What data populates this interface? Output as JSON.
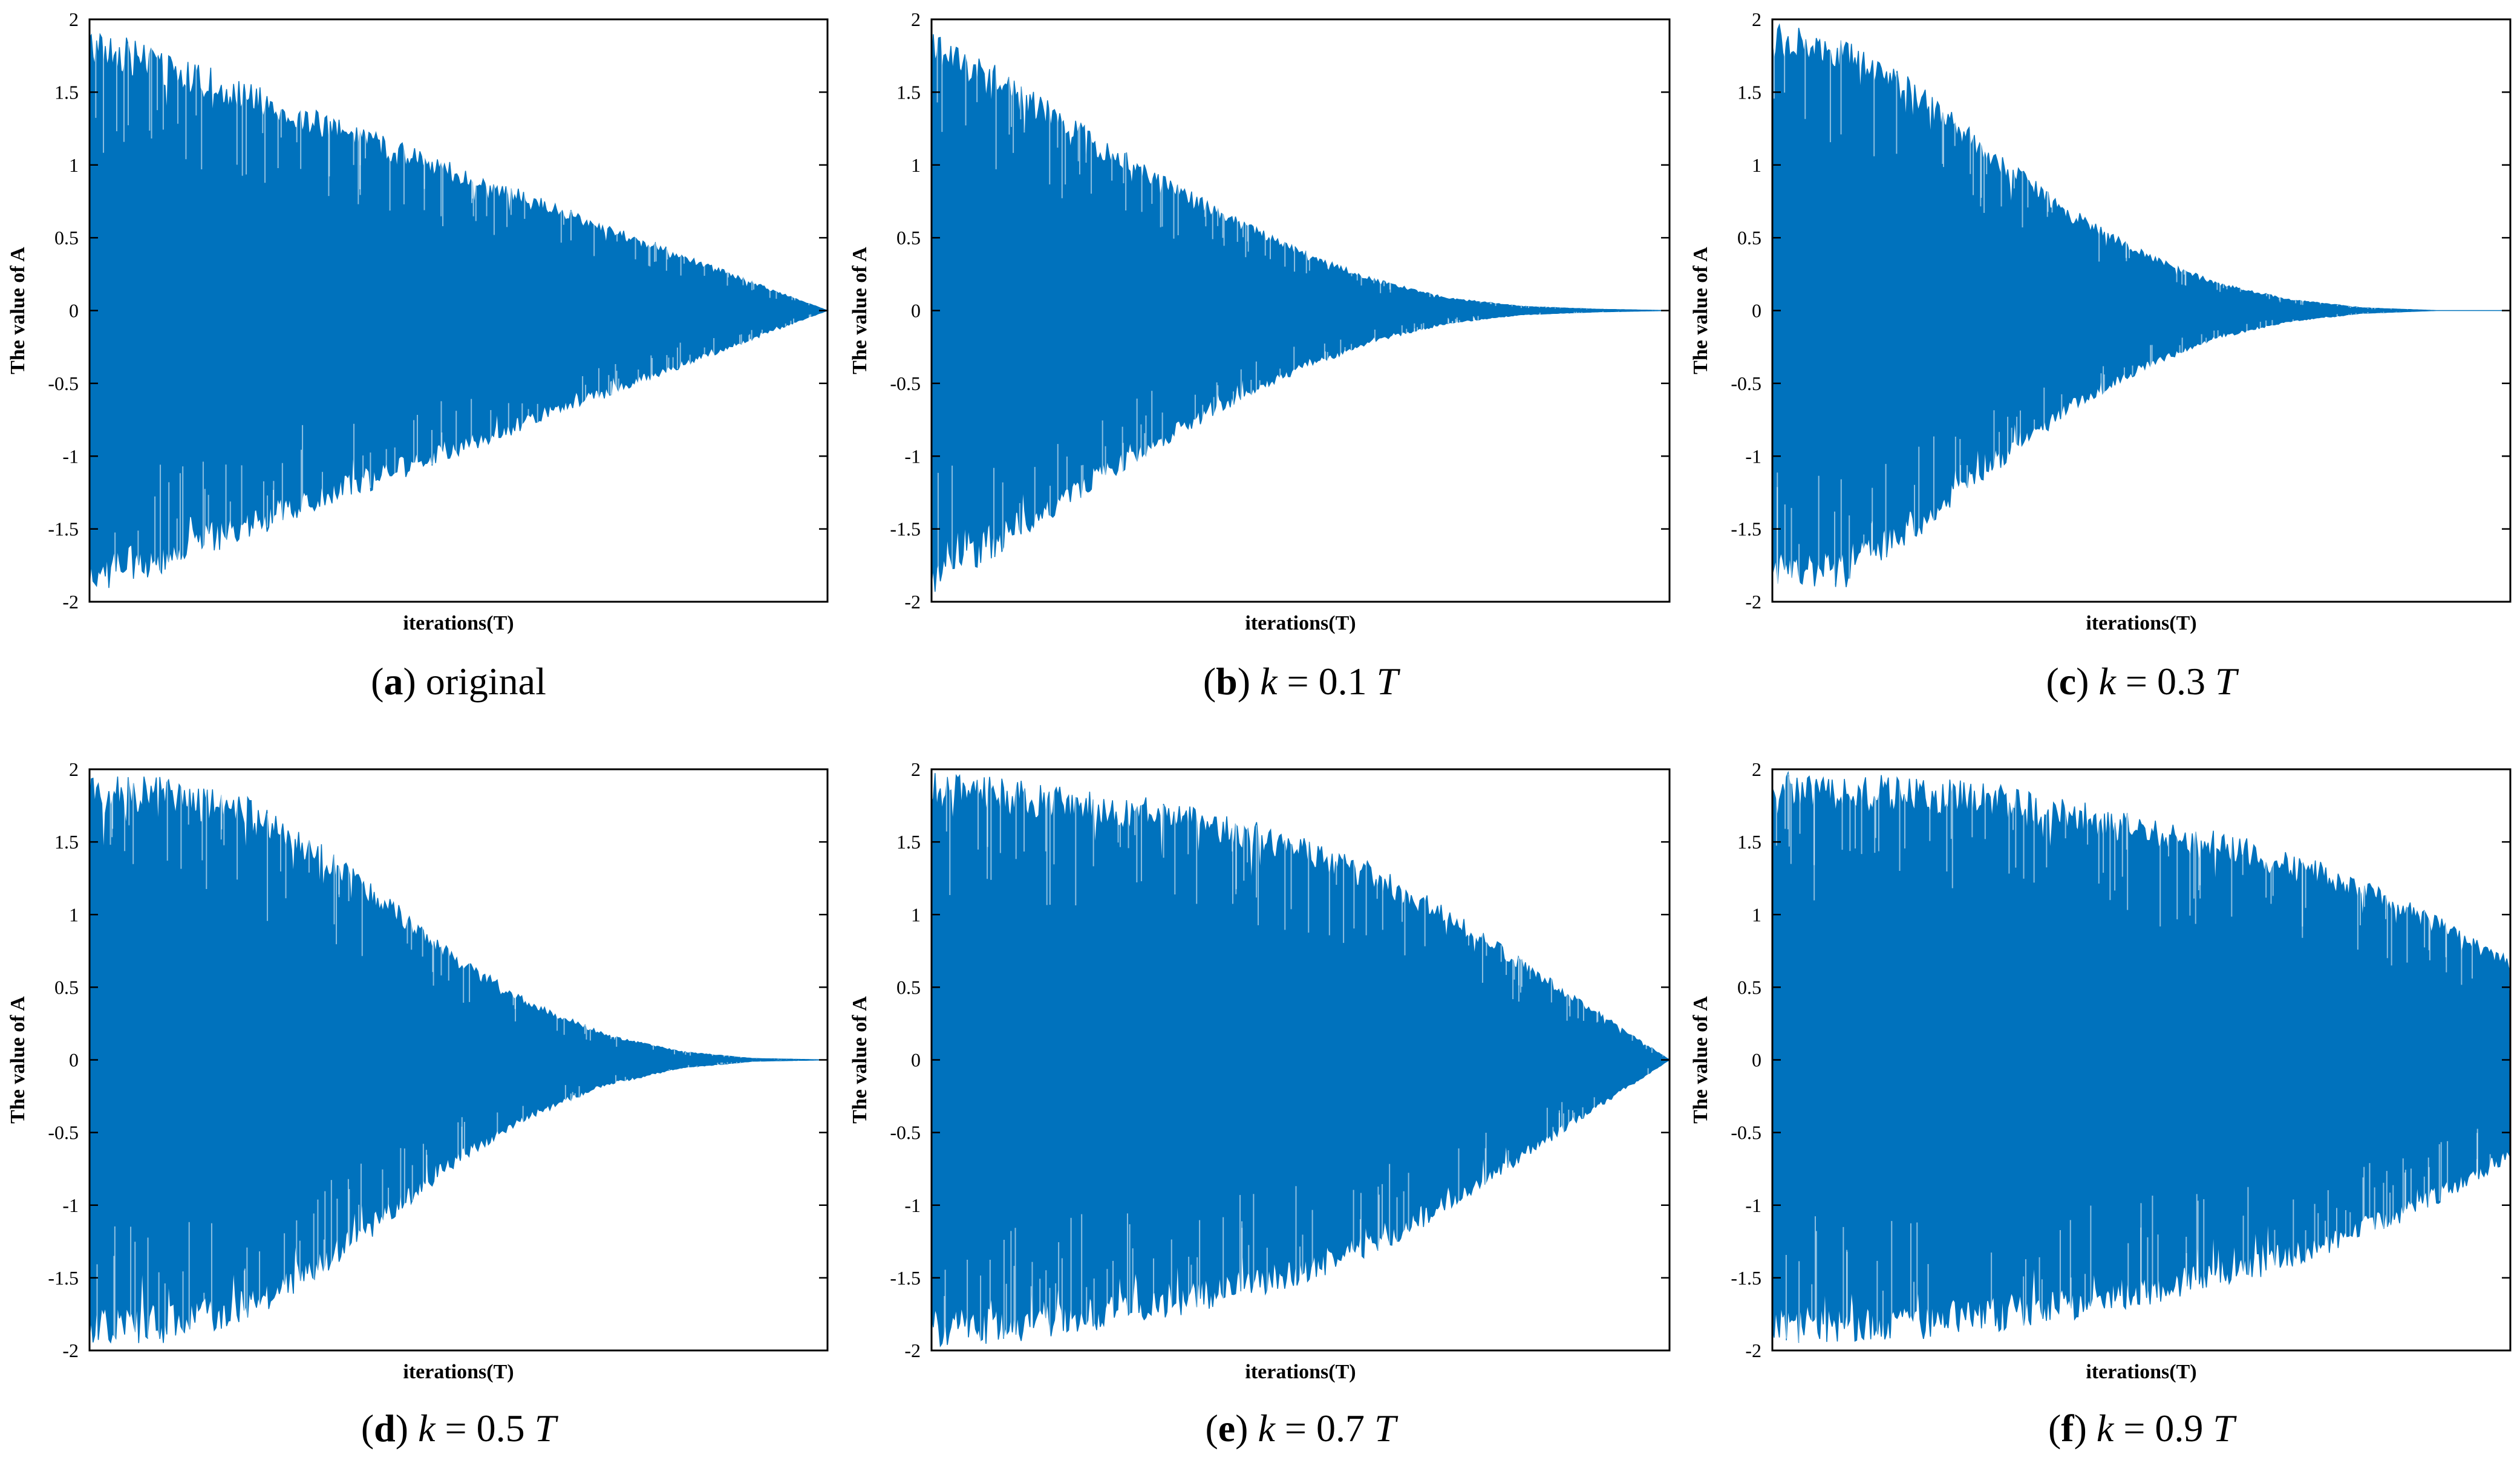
{
  "figure": {
    "background": "#ffffff",
    "series_color": "#0072bd",
    "axis_color": "#000000"
  },
  "chart_data": [
    {
      "id": "a",
      "type": "area",
      "title": "",
      "caption": {
        "letter": "a",
        "text": "original"
      },
      "xlabel": "iterations(T)",
      "ylabel": "The value of A",
      "ylim": [
        -2,
        2
      ],
      "yticks": [
        2,
        1.5,
        1,
        0.5,
        0,
        -0.5,
        -1,
        -1.5,
        -2
      ],
      "yticklabels": [
        "2",
        "1.5",
        "1",
        "0.5",
        "0",
        "-0.5",
        "-1",
        "-1.5",
        "-2"
      ],
      "x_normalized": [
        0,
        0.1,
        0.2,
        0.3,
        0.4,
        0.5,
        0.6,
        0.7,
        0.8,
        0.9,
        1.0
      ],
      "envelope_upper": [
        1.95,
        1.8,
        1.6,
        1.4,
        1.2,
        1.0,
        0.8,
        0.6,
        0.4,
        0.2,
        0.0
      ],
      "envelope_lower": [
        -1.95,
        -1.8,
        -1.6,
        -1.4,
        -1.2,
        -1.0,
        -0.8,
        -0.6,
        -0.4,
        -0.2,
        0.0
      ]
    },
    {
      "id": "b",
      "type": "area",
      "title": "",
      "caption": {
        "letter": "b",
        "text_pre": "k",
        "text_post": " = 0.1 ",
        "text_var": "T"
      },
      "xlabel": "iterations(T)",
      "ylabel": "The value of A",
      "ylim": [
        -2,
        2
      ],
      "yticks": [
        2,
        1.5,
        1,
        0.5,
        0,
        -0.5,
        -1,
        -1.5,
        -2
      ],
      "yticklabels": [
        "2",
        "1.5",
        "1",
        "0.5",
        "0",
        "-0.5",
        "-1",
        "-1.5",
        "-2"
      ],
      "x_normalized": [
        0,
        0.1,
        0.2,
        0.3,
        0.4,
        0.5,
        0.6,
        0.7,
        0.8,
        0.9,
        1.0
      ],
      "envelope_upper": [
        1.92,
        1.65,
        1.3,
        0.98,
        0.68,
        0.42,
        0.22,
        0.09,
        0.03,
        0.01,
        0.0
      ],
      "envelope_lower": [
        -1.95,
        -1.65,
        -1.3,
        -0.98,
        -0.68,
        -0.42,
        -0.22,
        -0.09,
        -0.03,
        -0.01,
        0.0
      ]
    },
    {
      "id": "c",
      "type": "area",
      "title": "",
      "caption": {
        "letter": "c",
        "text_pre": "k",
        "text_post": " = 0.3 ",
        "text_var": "T"
      },
      "xlabel": "iterations(T)",
      "ylabel": "The value of A",
      "ylim": [
        -2,
        2
      ],
      "yticks": [
        2,
        1.5,
        1,
        0.5,
        0,
        -0.5,
        -1,
        -1.5,
        -2
      ],
      "yticklabels": [
        "2",
        "1.5",
        "1",
        "0.5",
        "0",
        "-0.5",
        "-1",
        "-1.5",
        "-2"
      ],
      "x_normalized": [
        0,
        0.1,
        0.2,
        0.3,
        0.4,
        0.5,
        0.6,
        0.7,
        0.8,
        0.9,
        1.0
      ],
      "envelope_upper": [
        1.98,
        1.9,
        1.55,
        1.12,
        0.72,
        0.42,
        0.2,
        0.08,
        0.02,
        0.0,
        0.0
      ],
      "envelope_lower": [
        -1.9,
        -1.9,
        -1.55,
        -1.12,
        -0.72,
        -0.42,
        -0.2,
        -0.08,
        -0.02,
        0.0,
        0.0
      ]
    },
    {
      "id": "d",
      "type": "area",
      "title": "",
      "caption": {
        "letter": "d",
        "text_pre": "k",
        "text_post": " = 0.5 ",
        "text_var": "T"
      },
      "xlabel": "iterations(T)",
      "ylabel": "The value of A",
      "ylim": [
        -2,
        2
      ],
      "yticks": [
        2,
        1.5,
        1,
        0.5,
        0,
        -0.5,
        -1,
        -1.5,
        -2
      ],
      "yticklabels": [
        "2",
        "1.5",
        "1",
        "0.5",
        "0",
        "-0.5",
        "-1",
        "-1.5",
        "-2"
      ],
      "x_normalized": [
        0,
        0.1,
        0.2,
        0.3,
        0.4,
        0.5,
        0.6,
        0.7,
        0.8,
        0.9,
        1.0
      ],
      "envelope_upper": [
        1.98,
        1.95,
        1.85,
        1.55,
        1.15,
        0.72,
        0.4,
        0.18,
        0.06,
        0.01,
        0.0
      ],
      "envelope_lower": [
        -1.95,
        -1.95,
        -1.85,
        -1.55,
        -1.15,
        -0.72,
        -0.4,
        -0.18,
        -0.06,
        -0.01,
        0.0
      ]
    },
    {
      "id": "e",
      "type": "area",
      "title": "",
      "caption": {
        "letter": "e",
        "text_pre": "k",
        "text_post": " = 0.7 ",
        "text_var": "T"
      },
      "xlabel": "iterations(T)",
      "ylabel": "The value of A",
      "ylim": [
        -2,
        2
      ],
      "yticks": [
        2,
        1.5,
        1,
        0.5,
        0,
        -0.5,
        -1,
        -1.5,
        -2
      ],
      "yticklabels": [
        "2",
        "1.5",
        "1",
        "0.5",
        "0",
        "-0.5",
        "-1",
        "-1.5",
        "-2"
      ],
      "x_normalized": [
        0,
        0.1,
        0.2,
        0.3,
        0.4,
        0.5,
        0.6,
        0.7,
        0.8,
        0.9,
        1.0
      ],
      "envelope_upper": [
        1.98,
        1.95,
        1.9,
        1.8,
        1.7,
        1.55,
        1.35,
        1.05,
        0.7,
        0.35,
        0.0
      ],
      "envelope_lower": [
        -1.98,
        -1.95,
        -1.9,
        -1.8,
        -1.7,
        -1.55,
        -1.35,
        -1.05,
        -0.7,
        -0.35,
        0.0
      ]
    },
    {
      "id": "f",
      "type": "area",
      "title": "",
      "caption": {
        "letter": "f",
        "text_pre": "k",
        "text_post": " = 0.9 ",
        "text_var": "T"
      },
      "xlabel": "iterations(T)",
      "ylabel": "The value of A",
      "ylim": [
        -2,
        2
      ],
      "yticks": [
        2,
        1.5,
        1,
        0.5,
        0,
        -0.5,
        -1,
        -1.5,
        -2
      ],
      "yticklabels": [
        "2",
        "1.5",
        "1",
        "0.5",
        "0",
        "-0.5",
        "-1",
        "-1.5",
        "-2"
      ],
      "x_normalized": [
        0,
        0.1,
        0.2,
        0.3,
        0.4,
        0.5,
        0.6,
        0.7,
        0.8,
        0.9,
        1.0
      ],
      "envelope_upper": [
        1.98,
        1.97,
        1.95,
        1.9,
        1.8,
        1.7,
        1.58,
        1.45,
        1.25,
        1.0,
        0.7
      ],
      "envelope_lower": [
        -1.95,
        -1.95,
        -1.93,
        -1.88,
        -1.8,
        -1.7,
        -1.58,
        -1.45,
        -1.25,
        -1.0,
        -0.7
      ]
    }
  ]
}
